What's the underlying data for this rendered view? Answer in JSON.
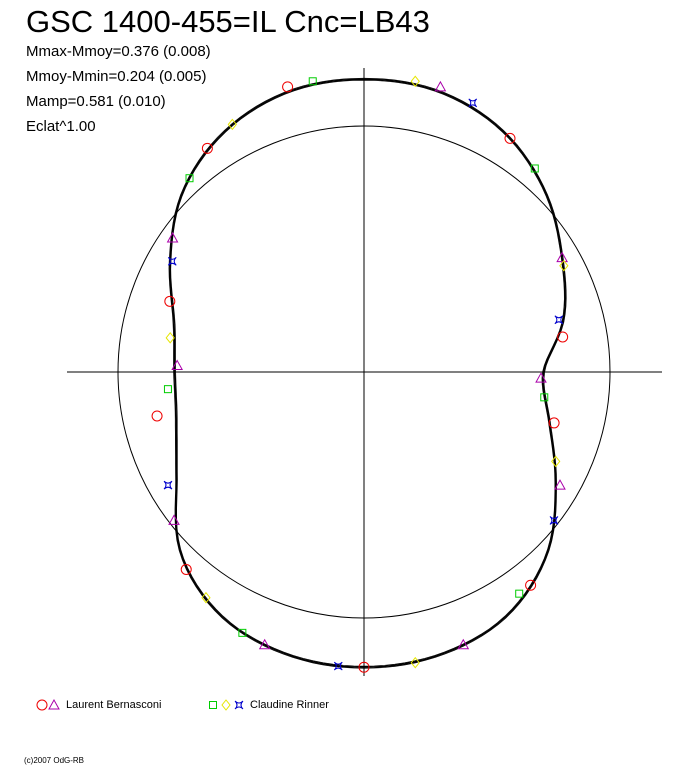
{
  "title": "GSC 1400-455=IL Cnc=LB43",
  "stats": {
    "line1": "Mmax-Mmoy=0.376 (0.008)",
    "line2": "Mmoy-Mmin=0.204 (0.005)",
    "line3": "Mamp=0.581 (0.010)",
    "line4": "Eclat^1.00"
  },
  "legend": {
    "observer1": "Laurent Bernasconi",
    "observer2": "Claudine Rinner"
  },
  "copyright": "(c)2007 OdG-RB",
  "colors": {
    "circle": "#ee0000",
    "triangle": "#aa00aa",
    "square": "#00cc00",
    "diamond": "#e6e600",
    "star": "#0000cc",
    "curve": "#000000"
  },
  "chart_data": {
    "type": "polar-lightcurve",
    "title": "GSC 1400-455=IL Cnc=LB43",
    "reference_circle_radius": 1.0,
    "mean_curve": {
      "note_units": "radius relative to reference circle; phase in degrees measured from top, clockwise",
      "points": [
        [
          0,
          1.19
        ],
        [
          15,
          1.18
        ],
        [
          30,
          1.13
        ],
        [
          45,
          1.04
        ],
        [
          60,
          0.93
        ],
        [
          75,
          0.84
        ],
        [
          90,
          0.73
        ],
        [
          105,
          0.78
        ],
        [
          120,
          0.9
        ],
        [
          135,
          1.05
        ],
        [
          150,
          1.15
        ],
        [
          165,
          1.19
        ],
        [
          180,
          1.2
        ],
        [
          195,
          1.19
        ],
        [
          210,
          1.15
        ],
        [
          225,
          1.05
        ],
        [
          240,
          0.88
        ],
        [
          255,
          0.79
        ],
        [
          270,
          0.77
        ],
        [
          285,
          0.8
        ],
        [
          300,
          0.91
        ],
        [
          315,
          1.04
        ],
        [
          330,
          1.13
        ],
        [
          345,
          1.18
        ]
      ]
    },
    "series": [
      {
        "name": "Laurent Bernasconi",
        "markers": [
          "circle",
          "triangle"
        ],
        "points": [
          [
            -15,
            1.2
          ],
          [
            15,
            1.2
          ],
          [
            32,
            1.12
          ],
          [
            60,
            0.93
          ],
          [
            80,
            0.82
          ],
          [
            92,
            0.72
          ],
          [
            105,
            0.8
          ],
          [
            120,
            0.92
          ],
          [
            142,
            1.1
          ],
          [
            160,
            1.18
          ],
          [
            180,
            1.2
          ],
          [
            200,
            1.18
          ],
          [
            222,
            1.08
          ],
          [
            232,
            0.98
          ],
          [
            258,
            0.86
          ],
          [
            272,
            0.76
          ],
          [
            290,
            0.84
          ],
          [
            305,
            0.95
          ],
          [
            325,
            1.11
          ]
        ]
      },
      {
        "name": "Claudine Rinner",
        "markers": [
          "square",
          "diamond",
          "star"
        ],
        "points": [
          [
            -10,
            1.2
          ],
          [
            10,
            1.2
          ],
          [
            22,
            1.18
          ],
          [
            40,
            1.08
          ],
          [
            62,
            0.92
          ],
          [
            75,
            0.82
          ],
          [
            98,
            0.74
          ],
          [
            115,
            0.86
          ],
          [
            128,
            0.98
          ],
          [
            145,
            1.1
          ],
          [
            170,
            1.2
          ],
          [
            185,
            1.2
          ],
          [
            205,
            1.17
          ],
          [
            215,
            1.12
          ],
          [
            240,
            0.92
          ],
          [
            265,
            0.8
          ],
          [
            280,
            0.8
          ],
          [
            300,
            0.9
          ],
          [
            318,
            1.06
          ],
          [
            332,
            1.14
          ]
        ]
      }
    ]
  }
}
